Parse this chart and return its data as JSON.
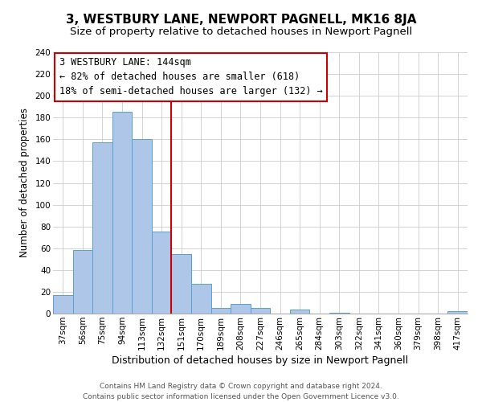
{
  "title": "3, WESTBURY LANE, NEWPORT PAGNELL, MK16 8JA",
  "subtitle": "Size of property relative to detached houses in Newport Pagnell",
  "xlabel": "Distribution of detached houses by size in Newport Pagnell",
  "ylabel": "Number of detached properties",
  "footer_lines": [
    "Contains HM Land Registry data © Crown copyright and database right 2024.",
    "Contains public sector information licensed under the Open Government Licence v3.0."
  ],
  "bin_labels": [
    "37sqm",
    "56sqm",
    "75sqm",
    "94sqm",
    "113sqm",
    "132sqm",
    "151sqm",
    "170sqm",
    "189sqm",
    "208sqm",
    "227sqm",
    "246sqm",
    "265sqm",
    "284sqm",
    "303sqm",
    "322sqm",
    "341sqm",
    "360sqm",
    "379sqm",
    "398sqm",
    "417sqm"
  ],
  "bar_values": [
    17,
    58,
    157,
    185,
    160,
    75,
    55,
    27,
    5,
    9,
    5,
    0,
    4,
    0,
    1,
    0,
    0,
    0,
    0,
    0,
    2
  ],
  "bar_color": "#aec6e8",
  "bar_edge_color": "#5a9fd4",
  "vline_x": 5.5,
  "vline_color": "#cc0000",
  "annotation_lines": [
    "3 WESTBURY LANE: 144sqm",
    "← 82% of detached houses are smaller (618)",
    "18% of semi-detached houses are larger (132) →"
  ],
  "ann_box_color": "#ffffff",
  "ann_edge_color": "#cc0000",
  "ylim": [
    0,
    240
  ],
  "yticks": [
    0,
    20,
    40,
    60,
    80,
    100,
    120,
    140,
    160,
    180,
    200,
    220,
    240
  ],
  "title_fontsize": 11,
  "subtitle_fontsize": 9.5,
  "xlabel_fontsize": 9,
  "ylabel_fontsize": 8.5,
  "tick_fontsize": 7.5,
  "annotation_fontsize": 8.5,
  "footer_fontsize": 6.5
}
